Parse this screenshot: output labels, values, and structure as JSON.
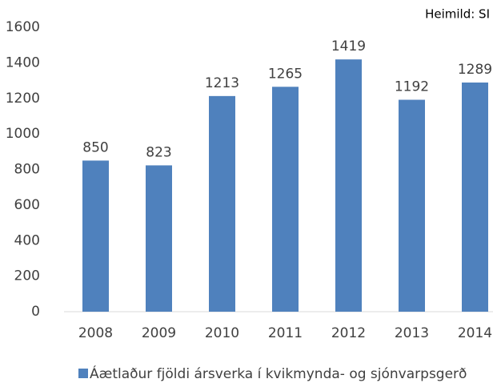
{
  "chart_data": {
    "type": "bar",
    "source": "Heimild: SI",
    "categories": [
      "2008",
      "2009",
      "2010",
      "2011",
      "2012",
      "2013",
      "2014"
    ],
    "series": [
      {
        "name": "Áætlaður fjöldi ársverka í kvikmynda- og sjónvarpsgerð",
        "color": "#4f81bd",
        "values": [
          850,
          823,
          1213,
          1265,
          1419,
          1192,
          1289
        ]
      }
    ],
    "ylim": [
      0,
      1600
    ],
    "yticks": [
      0,
      200,
      400,
      600,
      800,
      1000,
      1200,
      1400,
      1600
    ],
    "grid": false,
    "legend": "bottom"
  }
}
